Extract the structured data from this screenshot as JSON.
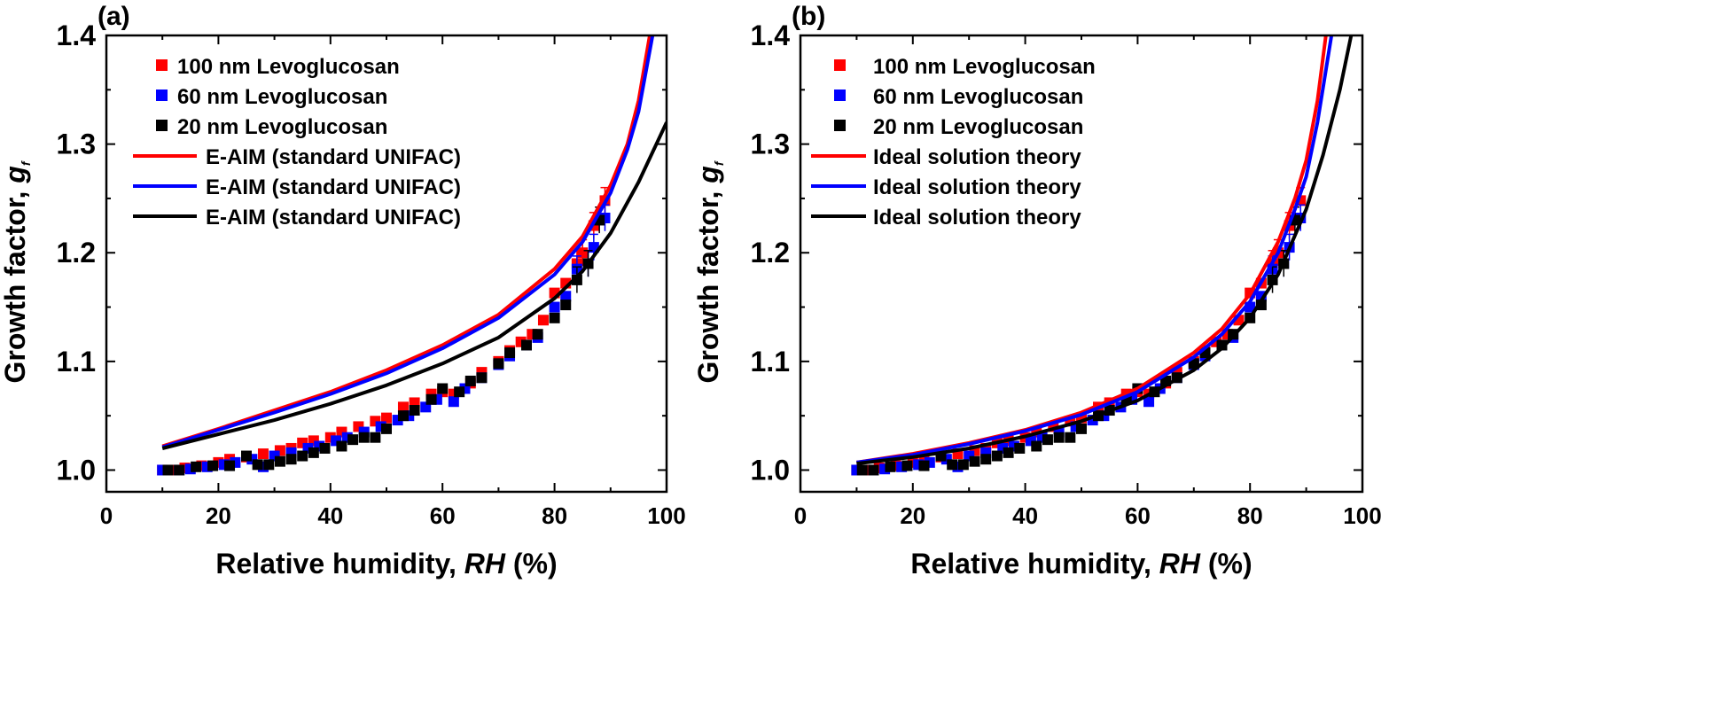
{
  "chart_data": [
    {
      "type": "scatter",
      "panel_label": "(a)",
      "xlabel": "Relative humidity, ",
      "xlabel_italic": "RH",
      "xlabel_suffix": " (%)",
      "ylabel": "Growth factor, ",
      "ylabel_italic": "g",
      "ylabel_sub": "f",
      "xlim": [
        0,
        100
      ],
      "ylim": [
        0.98,
        1.4
      ],
      "xticks": [
        0,
        20,
        40,
        60,
        80,
        100
      ],
      "yticks": [
        1.0,
        1.1,
        1.2,
        1.3,
        1.4
      ],
      "legend_position": "top-left",
      "series": [
        {
          "name": "100 nm Levoglucosan",
          "kind": "marker",
          "color": "#ff0000"
        },
        {
          "name": "60 nm  Levoglucosan",
          "kind": "marker",
          "color": "#0000ff"
        },
        {
          "name": "20 nm  Levoglucosan",
          "kind": "marker",
          "color": "#000000"
        },
        {
          "name": "E-AIM (standard UNIFAC)",
          "kind": "line",
          "color": "#ff0000",
          "points": [
            [
              10,
              1.022
            ],
            [
              20,
              1.038
            ],
            [
              30,
              1.055
            ],
            [
              40,
              1.072
            ],
            [
              50,
              1.092
            ],
            [
              60,
              1.115
            ],
            [
              70,
              1.143
            ],
            [
              80,
              1.185
            ],
            [
              85,
              1.215
            ],
            [
              90,
              1.262
            ],
            [
              93,
              1.3
            ],
            [
              95,
              1.34
            ],
            [
              97,
              1.4
            ]
          ]
        },
        {
          "name": "E-AIM (standard UNIFAC)",
          "kind": "line",
          "color": "#0000ff",
          "points": [
            [
              10,
              1.021
            ],
            [
              20,
              1.037
            ],
            [
              30,
              1.053
            ],
            [
              40,
              1.07
            ],
            [
              50,
              1.089
            ],
            [
              60,
              1.112
            ],
            [
              70,
              1.14
            ],
            [
              80,
              1.18
            ],
            [
              85,
              1.21
            ],
            [
              90,
              1.255
            ],
            [
              93,
              1.295
            ],
            [
              95,
              1.33
            ],
            [
              97.5,
              1.4
            ]
          ]
        },
        {
          "name": "E-AIM (standard UNIFAC)",
          "kind": "line",
          "color": "#000000",
          "points": [
            [
              10,
              1.02
            ],
            [
              20,
              1.033
            ],
            [
              30,
              1.046
            ],
            [
              40,
              1.061
            ],
            [
              50,
              1.078
            ],
            [
              60,
              1.098
            ],
            [
              70,
              1.122
            ],
            [
              80,
              1.158
            ],
            [
              85,
              1.183
            ],
            [
              90,
              1.218
            ],
            [
              95,
              1.265
            ],
            [
              100,
              1.32
            ]
          ]
        }
      ]
    },
    {
      "type": "scatter",
      "panel_label": "(b)",
      "xlabel": "Relative humidity, ",
      "xlabel_italic": "RH",
      "xlabel_suffix": " (%)",
      "ylabel": "Growth factor, ",
      "ylabel_italic": "g",
      "ylabel_sub": "f",
      "xlim": [
        0,
        100
      ],
      "ylim": [
        0.98,
        1.4
      ],
      "xticks": [
        0,
        20,
        40,
        60,
        80,
        100
      ],
      "yticks": [
        1.0,
        1.1,
        1.2,
        1.3,
        1.4
      ],
      "legend_position": "top-left",
      "series": [
        {
          "name": "100 nm Levoglucosan",
          "kind": "marker",
          "color": "#ff0000"
        },
        {
          "name": "60 nm Levoglucosan",
          "kind": "marker",
          "color": "#0000ff"
        },
        {
          "name": "20 nm  Levoglucosan",
          "kind": "marker",
          "color": "#000000"
        },
        {
          "name": "Ideal solution theory",
          "kind": "line",
          "color": "#ff0000",
          "points": [
            [
              10,
              1.007
            ],
            [
              20,
              1.015
            ],
            [
              30,
              1.025
            ],
            [
              40,
              1.037
            ],
            [
              50,
              1.053
            ],
            [
              60,
              1.075
            ],
            [
              70,
              1.108
            ],
            [
              75,
              1.13
            ],
            [
              80,
              1.162
            ],
            [
              85,
              1.21
            ],
            [
              88,
              1.25
            ],
            [
              90,
              1.285
            ],
            [
              92,
              1.34
            ],
            [
              93.5,
              1.4
            ]
          ]
        },
        {
          "name": "Ideal solution theory",
          "kind": "line",
          "color": "#0000ff",
          "points": [
            [
              10,
              1.007
            ],
            [
              20,
              1.014
            ],
            [
              30,
              1.024
            ],
            [
              40,
              1.036
            ],
            [
              50,
              1.051
            ],
            [
              60,
              1.072
            ],
            [
              70,
              1.104
            ],
            [
              75,
              1.125
            ],
            [
              80,
              1.155
            ],
            [
              85,
              1.2
            ],
            [
              88,
              1.24
            ],
            [
              90,
              1.27
            ],
            [
              92,
              1.32
            ],
            [
              94.5,
              1.4
            ]
          ]
        },
        {
          "name": "Ideal solution theory",
          "kind": "line",
          "color": "#000000",
          "points": [
            [
              10,
              1.006
            ],
            [
              20,
              1.012
            ],
            [
              30,
              1.02
            ],
            [
              40,
              1.031
            ],
            [
              50,
              1.045
            ],
            [
              60,
              1.064
            ],
            [
              70,
              1.092
            ],
            [
              75,
              1.112
            ],
            [
              80,
              1.14
            ],
            [
              85,
              1.18
            ],
            [
              90,
              1.24
            ],
            [
              93,
              1.29
            ],
            [
              96,
              1.35
            ],
            [
              98,
              1.4
            ]
          ]
        }
      ]
    }
  ],
  "measurements": {
    "100nm": [
      [
        10,
        1.0
      ],
      [
        12,
        1.0
      ],
      [
        14,
        1.002
      ],
      [
        17,
        1.004
      ],
      [
        20,
        1.007
      ],
      [
        22,
        1.01
      ],
      [
        25,
        1.012
      ],
      [
        28,
        1.015
      ],
      [
        31,
        1.018
      ],
      [
        33,
        1.02
      ],
      [
        35,
        1.025
      ],
      [
        37,
        1.027
      ],
      [
        40,
        1.03
      ],
      [
        42,
        1.035
      ],
      [
        45,
        1.04
      ],
      [
        48,
        1.045
      ],
      [
        50,
        1.048
      ],
      [
        53,
        1.058
      ],
      [
        55,
        1.062
      ],
      [
        58,
        1.07
      ],
      [
        60,
        1.072
      ],
      [
        62,
        1.07
      ],
      [
        65,
        1.08
      ],
      [
        67,
        1.09
      ],
      [
        70,
        1.1
      ],
      [
        72,
        1.11
      ],
      [
        74,
        1.118
      ],
      [
        76,
        1.125
      ],
      [
        78,
        1.138
      ],
      [
        80,
        1.163
      ],
      [
        82,
        1.172
      ],
      [
        84,
        1.19
      ],
      [
        85,
        1.2
      ],
      [
        87,
        1.225
      ],
      [
        89,
        1.248
      ]
    ],
    "60nm": [
      [
        10,
        1.0
      ],
      [
        13,
        1.0
      ],
      [
        15,
        1.001
      ],
      [
        18,
        1.003
      ],
      [
        21,
        1.005
      ],
      [
        23,
        1.007
      ],
      [
        26,
        1.01
      ],
      [
        28,
        1.003
      ],
      [
        30,
        1.013
      ],
      [
        33,
        1.016
      ],
      [
        36,
        1.02
      ],
      [
        38,
        1.022
      ],
      [
        41,
        1.027
      ],
      [
        43,
        1.03
      ],
      [
        46,
        1.035
      ],
      [
        49,
        1.04
      ],
      [
        52,
        1.046
      ],
      [
        54,
        1.05
      ],
      [
        57,
        1.058
      ],
      [
        59,
        1.065
      ],
      [
        62,
        1.063
      ],
      [
        64,
        1.075
      ],
      [
        67,
        1.085
      ],
      [
        70,
        1.097
      ],
      [
        72,
        1.105
      ],
      [
        75,
        1.115
      ],
      [
        77,
        1.122
      ],
      [
        80,
        1.15
      ],
      [
        82,
        1.16
      ],
      [
        84,
        1.185
      ],
      [
        86,
        1.19
      ],
      [
        87,
        1.205
      ],
      [
        89,
        1.232
      ]
    ],
    "20nm": [
      [
        11,
        1.0
      ],
      [
        13,
        1.0
      ],
      [
        16,
        1.003
      ],
      [
        19,
        1.004
      ],
      [
        22,
        1.004
      ],
      [
        25,
        1.013
      ],
      [
        27,
        1.005
      ],
      [
        29,
        1.005
      ],
      [
        31,
        1.008
      ],
      [
        33,
        1.01
      ],
      [
        35,
        1.013
      ],
      [
        37,
        1.016
      ],
      [
        39,
        1.02
      ],
      [
        42,
        1.022
      ],
      [
        44,
        1.028
      ],
      [
        46,
        1.03
      ],
      [
        48,
        1.03
      ],
      [
        50,
        1.038
      ],
      [
        53,
        1.05
      ],
      [
        55,
        1.055
      ],
      [
        58,
        1.065
      ],
      [
        60,
        1.075
      ],
      [
        63,
        1.072
      ],
      [
        65,
        1.082
      ],
      [
        67,
        1.085
      ],
      [
        70,
        1.098
      ],
      [
        72,
        1.108
      ],
      [
        75,
        1.115
      ],
      [
        77,
        1.125
      ],
      [
        80,
        1.14
      ],
      [
        82,
        1.152
      ],
      [
        84,
        1.175
      ],
      [
        86,
        1.19
      ],
      [
        88,
        1.23
      ]
    ]
  }
}
